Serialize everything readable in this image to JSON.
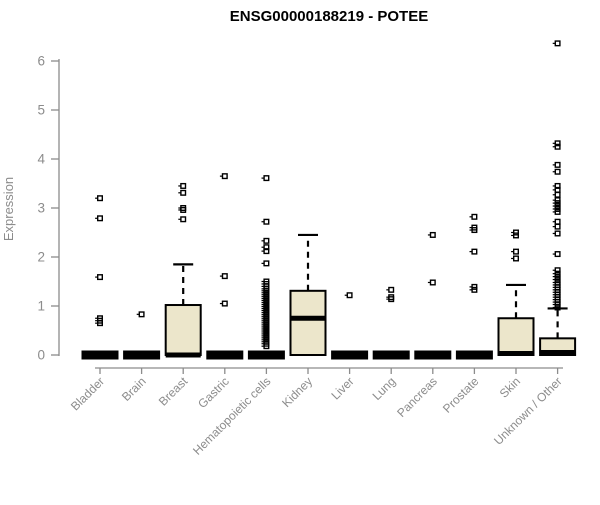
{
  "title": "ENSG00000188219 - POTEE",
  "colors": {
    "box_fill": "#ece6cb",
    "box_border": "#000000",
    "median": "#000000",
    "axis": "#8c8c8c",
    "title": "#000000",
    "background": "#ffffff"
  },
  "chart_data": {
    "type": "boxplot",
    "title": "ENSG00000188219 - POTEE",
    "xlabel": "",
    "ylabel": "Expression",
    "ylim": [
      0,
      6.4
    ],
    "y_ticks": [
      0,
      1,
      2,
      3,
      4,
      5,
      6
    ],
    "grid": false,
    "legend": "none",
    "categories": [
      "Bladder",
      "Brain",
      "Breast",
      "Gastric",
      "Hematopoietic cells",
      "Kidney",
      "Liver",
      "Lung",
      "Pancreas",
      "Prostate",
      "Skin",
      "Unknown / Other"
    ],
    "series": [
      {
        "name": "Bladder",
        "collapsed": true,
        "q1": 0,
        "median": 0,
        "q3": 0,
        "whisker_low": 0,
        "whisker_high": 0,
        "outliers": [
          3.2,
          2.79,
          1.59,
          0.75,
          0.7,
          0.65
        ]
      },
      {
        "name": "Brain",
        "collapsed": true,
        "q1": 0,
        "median": 0,
        "q3": 0,
        "whisker_low": 0,
        "whisker_high": 0,
        "outliers": [
          0.83
        ]
      },
      {
        "name": "Breast",
        "collapsed": false,
        "q1": 0,
        "median": 0,
        "q3": 1.02,
        "whisker_low": 0,
        "whisker_high": 1.85,
        "outliers": [
          3.45,
          3.31,
          3.0,
          2.96,
          2.77
        ]
      },
      {
        "name": "Gastric",
        "collapsed": true,
        "q1": 0,
        "median": 0,
        "q3": 0,
        "whisker_low": 0,
        "whisker_high": 0,
        "outliers": [
          3.65,
          1.61,
          1.05
        ]
      },
      {
        "name": "Hematopoietic cells",
        "collapsed": true,
        "q1": 0,
        "median": 0,
        "q3": 0,
        "whisker_low": 0,
        "whisker_high": 0,
        "outliers": [
          3.61,
          2.72,
          2.33,
          2.2,
          2.12,
          1.87,
          1.5,
          1.45,
          1.4,
          1.35,
          1.31,
          1.27,
          1.23,
          1.19,
          1.15,
          1.11,
          1.07,
          1.03,
          0.99,
          0.95,
          0.91,
          0.87,
          0.83,
          0.79,
          0.75,
          0.71,
          0.67,
          0.63,
          0.59,
          0.55,
          0.51,
          0.47,
          0.43,
          0.39,
          0.35,
          0.31,
          0.27,
          0.23,
          0.18
        ]
      },
      {
        "name": "Kidney",
        "collapsed": false,
        "q1": 0,
        "median": 0.75,
        "q3": 1.31,
        "whisker_low": 0,
        "whisker_high": 2.45,
        "outliers": []
      },
      {
        "name": "Liver",
        "collapsed": true,
        "q1": 0,
        "median": 0,
        "q3": 0,
        "whisker_low": 0,
        "whisker_high": 0,
        "outliers": [
          1.22
        ]
      },
      {
        "name": "Lung",
        "collapsed": true,
        "q1": 0,
        "median": 0,
        "q3": 0,
        "whisker_low": 0,
        "whisker_high": 0,
        "outliers": [
          1.33,
          1.18,
          1.14
        ]
      },
      {
        "name": "Pancreas",
        "collapsed": true,
        "q1": 0,
        "median": 0,
        "q3": 0,
        "whisker_low": 0,
        "whisker_high": 0,
        "outliers": [
          2.45,
          1.48
        ]
      },
      {
        "name": "Prostate",
        "collapsed": true,
        "q1": 0,
        "median": 0,
        "q3": 0,
        "whisker_low": 0,
        "whisker_high": 0,
        "outliers": [
          2.82,
          2.6,
          2.55,
          2.11,
          1.39,
          1.33
        ]
      },
      {
        "name": "Skin",
        "collapsed": false,
        "q1": 0,
        "median": 0.03,
        "q3": 0.75,
        "whisker_low": 0,
        "whisker_high": 1.43,
        "outliers": [
          2.5,
          2.44,
          2.11,
          1.97
        ]
      },
      {
        "name": "Unknown / Other",
        "collapsed": false,
        "q1": 0,
        "median": 0.05,
        "q3": 0.34,
        "whisker_low": 0,
        "whisker_high": 0.95,
        "outliers": [
          6.36,
          4.32,
          4.25,
          3.88,
          3.74,
          3.45,
          3.37,
          3.27,
          3.16,
          3.1,
          3.04,
          2.98,
          2.92,
          2.72,
          2.62,
          2.48,
          2.06,
          1.73,
          1.66,
          1.6,
          1.54,
          1.48,
          1.43,
          1.38,
          1.33,
          1.28,
          1.23,
          1.18,
          1.13,
          1.08,
          1.03,
          0.97
        ]
      }
    ]
  }
}
